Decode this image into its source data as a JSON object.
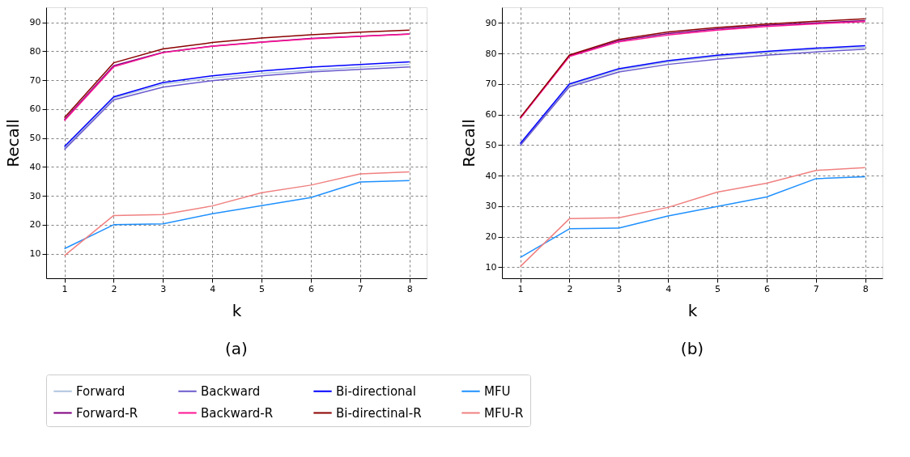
{
  "chart_data": [
    {
      "type": "line",
      "title": "(a)",
      "xlabel": "k",
      "ylabel": "Recall",
      "x": [
        1,
        2,
        3,
        4,
        5,
        6,
        7,
        8
      ],
      "xlim": [
        0.63,
        8.35
      ],
      "ylim": [
        1.5,
        95.2
      ],
      "xticks": [
        1,
        2,
        3,
        4,
        5,
        6,
        7,
        8
      ],
      "yticks": [
        10,
        20,
        30,
        40,
        50,
        60,
        70,
        80,
        90
      ],
      "grid": true,
      "legend": "bottom",
      "line_style": "solid",
      "series": [
        {
          "name": "Forward",
          "color": "#b0c4de",
          "values": [
            46.5,
            63.8,
            68.6,
            70.7,
            72.3,
            73.4,
            74.5,
            75.4
          ]
        },
        {
          "name": "Backward",
          "color": "#6a5acd",
          "values": [
            46,
            63.2,
            67.6,
            69.8,
            71.5,
            72.8,
            73.7,
            74.6
          ]
        },
        {
          "name": "Bi-directional",
          "color": "#0000ff",
          "values": [
            47,
            64.2,
            69.2,
            71.5,
            73.2,
            74.5,
            75.4,
            76.3
          ]
        },
        {
          "name": "MFU",
          "color": "#1e90ff",
          "values": [
            11.7,
            20,
            20.3,
            23.8,
            26.6,
            29.4,
            34.8,
            35.3
          ]
        },
        {
          "name": "Forward-R",
          "color": "#800080",
          "values": [
            56.3,
            75,
            79.6,
            81.8,
            83.2,
            84.4,
            85.2,
            86
          ]
        },
        {
          "name": "Backward-R",
          "color": "#ff1493",
          "values": [
            56,
            74.6,
            79.5,
            81.7,
            83.1,
            84.3,
            85.1,
            85.9
          ]
        },
        {
          "name": "Bi-directinal-R",
          "color": "#8b0000",
          "values": [
            57,
            76,
            80.8,
            83,
            84.6,
            85.7,
            86.6,
            87.3
          ]
        },
        {
          "name": "MFU-R",
          "color": "#f08080",
          "values": [
            9.3,
            23.2,
            23.5,
            26.5,
            31.1,
            33.7,
            37.6,
            38.3
          ]
        }
      ]
    },
    {
      "type": "line",
      "title": "(b)",
      "xlabel": "k",
      "ylabel": "Recall",
      "x": [
        1,
        2,
        3,
        4,
        5,
        6,
        7,
        8
      ],
      "xlim": [
        0.63,
        8.35
      ],
      "ylim": [
        6.4,
        95.1
      ],
      "xticks": [
        1,
        2,
        3,
        4,
        5,
        6,
        7,
        8
      ],
      "yticks": [
        10,
        20,
        30,
        40,
        50,
        60,
        70,
        80,
        90
      ],
      "grid": true,
      "legend": "bottom",
      "line_style": "solid",
      "series": [
        {
          "name": "Forward",
          "color": "#b0c4de",
          "values": [
            50.2,
            69.6,
            74.6,
            77.2,
            79,
            80.3,
            81.3,
            82
          ]
        },
        {
          "name": "Backward",
          "color": "#6a5acd",
          "values": [
            49.8,
            69.1,
            73.9,
            76.4,
            78.1,
            79.4,
            80.5,
            81.4
          ]
        },
        {
          "name": "Bi-directional",
          "color": "#0000ff",
          "values": [
            50.5,
            70,
            75,
            77.6,
            79.4,
            80.7,
            81.7,
            82.5
          ]
        },
        {
          "name": "MFU",
          "color": "#1e90ff",
          "values": [
            13.2,
            22.6,
            22.8,
            26.8,
            29.9,
            33,
            39,
            39.6
          ]
        },
        {
          "name": "Forward-R",
          "color": "#800080",
          "values": [
            58.8,
            79.2,
            84.2,
            86.5,
            88,
            89.2,
            90,
            90.7
          ]
        },
        {
          "name": "Backward-R",
          "color": "#ff1493",
          "values": [
            58.7,
            79,
            83.8,
            86,
            87.6,
            88.8,
            89.7,
            90.4
          ]
        },
        {
          "name": "Bi-directinal-R",
          "color": "#8b0000",
          "values": [
            59,
            79.5,
            84.6,
            87,
            88.5,
            89.6,
            90.5,
            91.3
          ]
        },
        {
          "name": "MFU-R",
          "color": "#f08080",
          "values": [
            10.2,
            25.9,
            26.2,
            29.6,
            34.6,
            37.5,
            41.7,
            42.6
          ]
        }
      ]
    }
  ]
}
